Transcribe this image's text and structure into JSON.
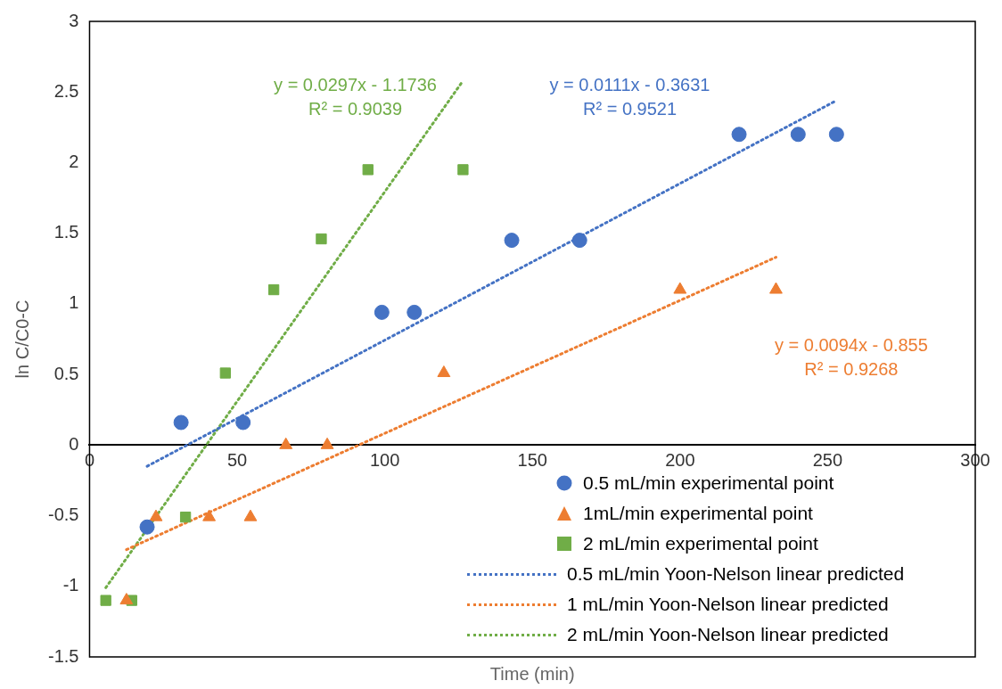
{
  "chart_data": {
    "type": "scatter",
    "xlabel": "Time (min)",
    "ylabel": "ln C/C0-C",
    "xlim": [
      0,
      300
    ],
    "xticks": [
      0,
      50,
      100,
      150,
      200,
      250,
      300
    ],
    "ylim": [
      -1.5,
      3
    ],
    "yticks": [
      -1.5,
      -1,
      -0.5,
      0,
      0.5,
      1,
      1.5,
      2,
      2.5,
      3
    ],
    "grid": false,
    "legend": "bottom right",
    "series": [
      {
        "name": "0.5 mL/min experimental point",
        "marker": "circle",
        "color": "#4472c4",
        "x": [
          19.5,
          31,
          52,
          99,
          110,
          143,
          166,
          220,
          240,
          253
        ],
        "values": [
          -0.58,
          0.16,
          0.16,
          0.94,
          0.94,
          1.45,
          1.45,
          2.2,
          2.2,
          2.2
        ]
      },
      {
        "name": "1mL/min experimental point",
        "marker": "triangle",
        "color": "#ed7d31",
        "x": [
          12.5,
          22.5,
          40.5,
          54.5,
          66.5,
          80.5,
          120,
          200,
          232.5
        ],
        "values": [
          -1.1,
          -0.51,
          -0.51,
          -0.51,
          0,
          0,
          0.51,
          1.1,
          1.1
        ]
      },
      {
        "name": "2 mL/min experimental point",
        "marker": "square",
        "color": "#70ad47",
        "x": [
          5.5,
          14.3,
          32.5,
          46,
          62.4,
          78.5,
          94.3,
          126.5
        ],
        "values": [
          -1.1,
          -1.1,
          -0.51,
          0.51,
          1.1,
          1.46,
          1.95,
          1.95
        ]
      },
      {
        "name": "0.5 mL/min Yoon-Nelson linear predicted",
        "type": "line",
        "marker": "none",
        "line_style": "dotted",
        "color": "#4472c4",
        "x": [
          19.5,
          253
        ],
        "values": [
          -0.15,
          2.44
        ]
      },
      {
        "name": "1 mL/min  Yoon-Nelson linear predicted",
        "type": "line",
        "marker": "none",
        "line_style": "dotted",
        "color": "#ed7d31",
        "x": [
          12.5,
          232.5
        ],
        "values": [
          -0.74,
          1.33
        ]
      },
      {
        "name": "2 mL/min  Yoon-Nelson linear predicted",
        "type": "line",
        "marker": "none",
        "line_style": "dotted",
        "color": "#70ad47",
        "x": [
          5.5,
          126.5
        ],
        "values": [
          -1.01,
          2.58
        ]
      }
    ],
    "annotations": [
      "y = 0.0111x - 0.3631\nR² = 0.9521",
      "y = 0.0094x - 0.855\nR² = 0.9268",
      "y = 0.0297x - 1.1736\nR² = 0.9039"
    ]
  }
}
